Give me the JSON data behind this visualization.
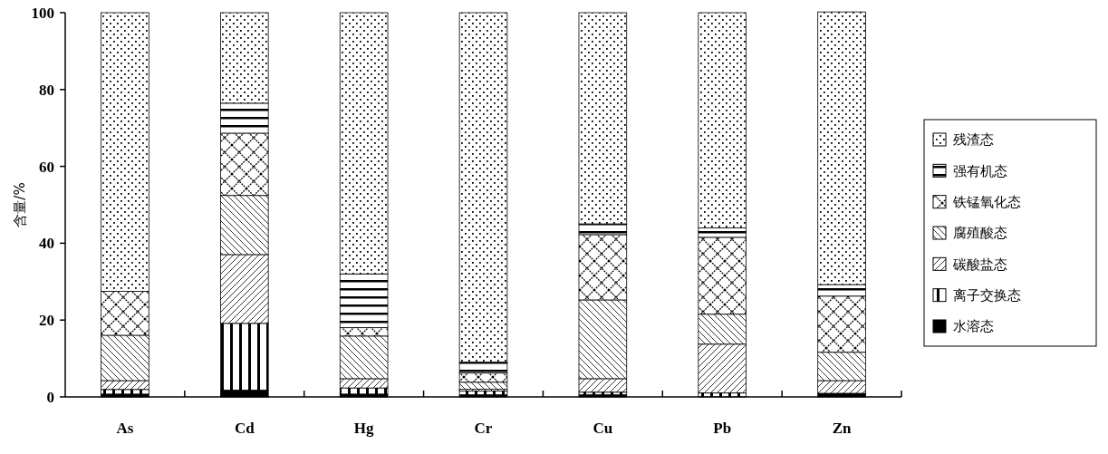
{
  "chart_data": {
    "type": "bar",
    "stacked": true,
    "ylabel": "含量/%",
    "categories": [
      "As",
      "Cd",
      "Hg",
      "Cr",
      "Cu",
      "Pb",
      "Zn"
    ],
    "ylim": [
      0,
      100
    ],
    "yticks": [
      0,
      20,
      40,
      60,
      80,
      100
    ],
    "grid": false,
    "legend": "right",
    "series": [
      {
        "name": "水溶态",
        "color": "#000000",
        "values": [
          0.7,
          1.7,
          0.7,
          0.5,
          0.5,
          0,
          0.9
        ]
      },
      {
        "name": "离子交换态",
        "color": "#000000",
        "values": [
          1.2,
          17.4,
          1.6,
          1.0,
          0.7,
          1.0,
          0
        ]
      },
      {
        "name": "碳酸盐态",
        "color": "#000000",
        "values": [
          2.3,
          17.9,
          2.4,
          0.5,
          3.5,
          12.7,
          3.3
        ]
      },
      {
        "name": "腐殖酸态",
        "color": "#000000",
        "values": [
          11.8,
          15.4,
          11.1,
          1.8,
          20.5,
          7.8,
          7.4
        ]
      },
      {
        "name": "铁锰氧化态",
        "color": "#000000",
        "values": [
          11.5,
          16.2,
          2.2,
          2.4,
          17,
          20,
          14.6
        ]
      },
      {
        "name": "强有机态",
        "color": "#000000",
        "values": [
          0,
          7.8,
          14,
          2.8,
          2.8,
          2.5,
          3
        ]
      },
      {
        "name": "残渣态",
        "color": "#000000",
        "values": [
          72.5,
          23.6,
          68,
          91,
          55,
          56,
          71
        ]
      }
    ]
  }
}
